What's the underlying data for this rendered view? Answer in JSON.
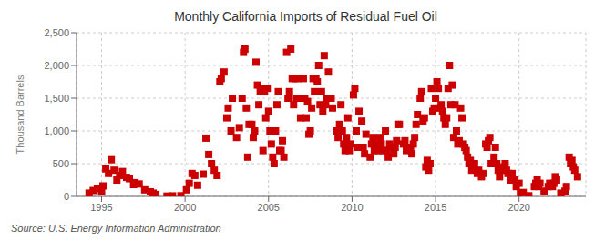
{
  "chart_data": {
    "type": "scatter",
    "title": "Monthly California Imports of Residual Fuel Oil",
    "ylabel": "Thousand Barrels",
    "source": "Source: U.S. Energy Information Administration",
    "color": "#cc0000",
    "marker": "square",
    "grid": true,
    "xlim": [
      1993.5,
      2024
    ],
    "ylim": [
      0,
      2500
    ],
    "xticks": [
      1995,
      2000,
      2005,
      2010,
      2015,
      2020
    ],
    "yticks": [
      0,
      500,
      {
        "value": 1000,
        "label": "1,000"
      },
      {
        "value": 1500,
        "label": "1,500"
      },
      {
        "value": 2000,
        "label": "2,000"
      },
      {
        "value": 2500,
        "label": "2,500"
      }
    ],
    "x": [
      1994.25,
      1994.5,
      1994.75,
      1995,
      1995.083,
      1995.25,
      1995.417,
      1995.583,
      1995.75,
      1995.917,
      1996.083,
      1996.25,
      1996.5,
      1996.667,
      1996.917,
      1997,
      1997.25,
      1997.583,
      1997.917,
      1998.083,
      1998.25,
      1998.917,
      1999.25,
      1999.75,
      2000.083,
      2000.25,
      2000.417,
      2000.583,
      2000.75,
      2001.083,
      2001.25,
      2001.417,
      2001.583,
      2001.75,
      2001.917,
      2002.083,
      2002.167,
      2002.333,
      2002.5,
      2002.583,
      2002.75,
      2002.833,
      2003.083,
      2003.25,
      2003.417,
      2003.5,
      2003.583,
      2003.667,
      2003.75,
      2003.833,
      2004,
      2004.083,
      2004.167,
      2004.25,
      2004.333,
      2004.417,
      2004.5,
      2004.583,
      2004.667,
      2004.75,
      2004.833,
      2004.917,
      2005,
      2005.083,
      2005.167,
      2005.25,
      2005.333,
      2005.417,
      2005.5,
      2005.583,
      2005.667,
      2005.75,
      2005.833,
      2005.917,
      2006.083,
      2006.167,
      2006.25,
      2006.333,
      2006.417,
      2006.5,
      2006.583,
      2006.667,
      2006.75,
      2006.833,
      2006.917,
      2007.083,
      2007.167,
      2007.25,
      2007.333,
      2007.417,
      2007.5,
      2007.583,
      2007.667,
      2007.75,
      2007.833,
      2007.917,
      2008,
      2008.083,
      2008.167,
      2008.25,
      2008.333,
      2008.417,
      2008.5,
      2008.583,
      2008.667,
      2008.75,
      2008.833,
      2009.083,
      2009.167,
      2009.25,
      2009.333,
      2009.417,
      2009.5,
      2009.583,
      2009.667,
      2009.75,
      2009.833,
      2009.917,
      2010.083,
      2010.167,
      2010.25,
      2010.333,
      2010.417,
      2010.5,
      2010.583,
      2010.667,
      2010.75,
      2010.833,
      2011.083,
      2011.167,
      2011.25,
      2011.333,
      2011.417,
      2011.5,
      2011.583,
      2011.667,
      2011.75,
      2011.833,
      2012,
      2012.083,
      2012.167,
      2012.25,
      2012.333,
      2012.5,
      2012.583,
      2012.667,
      2012.75,
      2012.833,
      2013.083,
      2013.167,
      2013.25,
      2013.333,
      2013.5,
      2013.583,
      2013.667,
      2013.75,
      2013.833,
      2013.917,
      2014.083,
      2014.167,
      2014.25,
      2014.333,
      2014.417,
      2014.5,
      2014.583,
      2014.667,
      2014.75,
      2014.833,
      2014.917,
      2015,
      2015.083,
      2015.167,
      2015.25,
      2015.333,
      2015.417,
      2015.5,
      2015.583,
      2015.667,
      2015.75,
      2015.833,
      2015.917,
      2016,
      2016.083,
      2016.167,
      2016.25,
      2016.333,
      2016.417,
      2016.5,
      2016.583,
      2016.667,
      2016.75,
      2016.833,
      2016.917,
      2017,
      2017.083,
      2017.167,
      2017.25,
      2017.333,
      2017.5,
      2017.583,
      2017.75,
      2017.833,
      2018,
      2018.083,
      2018.167,
      2018.25,
      2018.333,
      2018.5,
      2018.583,
      2018.667,
      2018.75,
      2018.833,
      2019,
      2019.083,
      2019.167,
      2019.25,
      2019.333,
      2019.5,
      2019.583,
      2019.75,
      2019.833,
      2020,
      2020.083,
      2020.25,
      2020.583,
      2020.917,
      2021,
      2021.083,
      2021.167,
      2021.25,
      2021.5,
      2021.75,
      2021.833,
      2022,
      2022.083,
      2022.167,
      2022.25,
      2022.5,
      2022.75,
      2022.833,
      2023,
      2023.083,
      2023.167,
      2023.25,
      2023.333,
      2023.5
    ],
    "values": [
      50,
      90,
      120,
      80,
      160,
      420,
      350,
      560,
      400,
      250,
      320,
      380,
      290,
      270,
      180,
      210,
      190,
      100,
      70,
      50,
      30,
      5,
      8,
      10,
      100,
      200,
      350,
      320,
      170,
      340,
      890,
      640,
      500,
      400,
      320,
      1750,
      1800,
      1900,
      1200,
      1350,
      1000,
      1500,
      900,
      1050,
      1500,
      2200,
      2250,
      1350,
      600,
      1100,
      1100,
      900,
      1000,
      2050,
      1700,
      1400,
      1600,
      1650,
      700,
      1600,
      1200,
      1650,
      1300,
      1000,
      800,
      600,
      500,
      1000,
      1400,
      1600,
      700,
      700,
      850,
      600,
      2200,
      1500,
      1600,
      2250,
      1800,
      1400,
      1800,
      1500,
      1800,
      1500,
      1200,
      1800,
      1500,
      1200,
      1450,
      950,
      1000,
      1350,
      1800,
      1600,
      1800,
      1750,
      2000,
      1400,
      1600,
      1300,
      2150,
      1400,
      1500,
      1900,
      1500,
      1500,
      1350,
      1000,
      900,
      1100,
      1400,
      1000,
      800,
      700,
      900,
      1200,
      700,
      800,
      1550,
      1650,
      1000,
      750,
      1300,
      750,
      1150,
      750,
      650,
      950,
      600,
      800,
      900,
      700,
      800,
      750,
      700,
      900,
      800,
      700,
      1000,
      700,
      600,
      800,
      750,
      650,
      750,
      850,
      1100,
      1100,
      800,
      850,
      700,
      750,
      750,
      650,
      800,
      900,
      1100,
      1250,
      1500,
      1600,
      1150,
      1200,
      450,
      550,
      400,
      500,
      1650,
      1300,
      1350,
      1500,
      1750,
      1650,
      1350,
      1400,
      1300,
      1200,
      1100,
      1200,
      1650,
      2000,
      1400,
      1700,
      900,
      1400,
      1000,
      800,
      850,
      1350,
      1200,
      800,
      750,
      700,
      600,
      500,
      550,
      400,
      450,
      500,
      350,
      400,
      300,
      350,
      800,
      750,
      850,
      900,
      500,
      600,
      750,
      500,
      400,
      300,
      400,
      450,
      500,
      400,
      350,
      250,
      350,
      250,
      150,
      200,
      50,
      60,
      10,
      150,
      200,
      250,
      150,
      200,
      80,
      150,
      200,
      150,
      200,
      300,
      250,
      50,
      80,
      150,
      600,
      500,
      550,
      450,
      400,
      300
    ]
  }
}
